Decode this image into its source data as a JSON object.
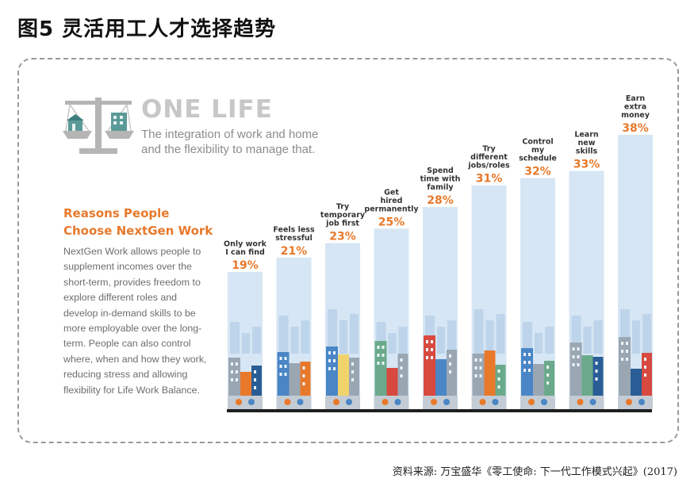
{
  "figure_title": "图5  灵活用工人才选择趋势",
  "header": {
    "brand": "ONE LIFE",
    "subtitle": "The integration of work and home and the flexibility to manage that."
  },
  "sidebar": {
    "title": "Reasons People Choose NextGen Work",
    "body": "NextGen Work allows people to supplement incomes over the short-term, provides freedom to explore different roles and develop in-demand skills to be more employable over the long-term. People can also control where, when and how they work, reducing stress and allowing flexibility for Life Work Balance."
  },
  "source": "资料来源: 万宝盛华《零工使命: 下一代工作模式兴起》(2017)",
  "colors": {
    "accent": "#e8792b",
    "bar_fill": "#d6e6f4",
    "building_blue": "#4a86c5",
    "building_red": "#d8493f",
    "building_grey": "#9aa7b3",
    "ground": "#1f1f1f"
  },
  "chart_data": {
    "type": "bar",
    "title": "Reasons People Choose NextGen Work",
    "xlabel": "",
    "ylabel": "",
    "ylim": [
      0,
      40
    ],
    "categories": [
      [
        "Only work",
        "I can find"
      ],
      [
        "Feels less",
        "stressful"
      ],
      [
        "Try",
        "temporary",
        "job first"
      ],
      [
        "Get",
        "hired",
        "permanently"
      ],
      [
        "Spend",
        "time with",
        "family"
      ],
      [
        "Try",
        "different",
        "jobs/roles"
      ],
      [
        "Control",
        "my",
        "schedule"
      ],
      [
        "Learn",
        "new",
        "skills"
      ],
      [
        "Earn",
        "extra",
        "money"
      ]
    ],
    "values": [
      19,
      21,
      23,
      25,
      28,
      31,
      32,
      33,
      38
    ],
    "value_labels": [
      "19%",
      "21%",
      "23%",
      "25%",
      "28%",
      "31%",
      "32%",
      "33%",
      "38%"
    ]
  }
}
